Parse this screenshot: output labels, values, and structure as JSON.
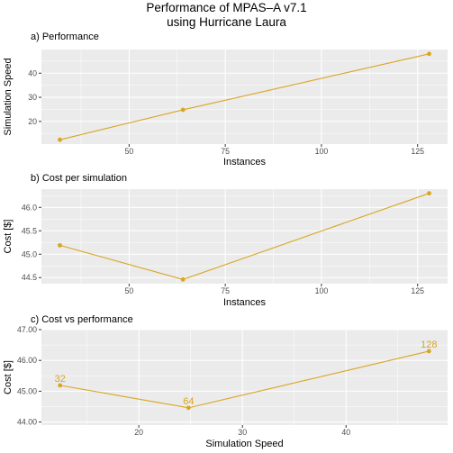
{
  "figure": {
    "title_line1": "Performance of MPAS–A v7.1",
    "title_line2": "using Hurricane Laura"
  },
  "colors": {
    "panel_bg": "#EBEBEB",
    "grid": "#FFFFFF",
    "series": "#DAA520"
  },
  "chart_data": [
    {
      "type": "line",
      "subtitle": "a) Performance",
      "xlabel": "Instances",
      "ylabel": "Simulation Speed",
      "x": [
        32,
        64,
        128
      ],
      "y": [
        12.4,
        24.8,
        48.0
      ],
      "xlim": [
        27.2,
        132.8
      ],
      "ylim": [
        10.6,
        49.8
      ],
      "xticks": [
        50,
        75,
        100,
        125
      ],
      "xtick_labels": [
        "50",
        "75",
        "100",
        "125"
      ],
      "yticks": [
        20,
        30,
        40
      ],
      "ytick_labels": [
        "20",
        "30",
        "40"
      ],
      "grid": true
    },
    {
      "type": "line",
      "subtitle": "b) Cost per simulation",
      "xlabel": "Instances",
      "ylabel": "Cost [$]",
      "x": [
        32,
        64,
        128
      ],
      "y": [
        45.19,
        44.46,
        46.3
      ],
      "xlim": [
        27.2,
        132.8
      ],
      "ylim": [
        44.37,
        46.39
      ],
      "xticks": [
        50,
        75,
        100,
        125
      ],
      "xtick_labels": [
        "50",
        "75",
        "100",
        "125"
      ],
      "yticks": [
        44.5,
        45.0,
        45.5,
        46.0
      ],
      "ytick_labels": [
        "44.5",
        "45.0",
        "45.5",
        "46.0"
      ],
      "grid": true
    },
    {
      "type": "line",
      "subtitle": "c) Cost vs performance",
      "xlabel": "Simulation Speed",
      "ylabel": "Cost [$]",
      "x": [
        12.4,
        24.8,
        48.0
      ],
      "y": [
        45.19,
        44.46,
        46.3
      ],
      "point_labels": [
        "32",
        "64",
        "128"
      ],
      "xlim": [
        10.6,
        49.8
      ],
      "ylim": [
        43.9,
        47.0
      ],
      "xticks": [
        20,
        30,
        40
      ],
      "xtick_labels": [
        "20",
        "30",
        "40"
      ],
      "yticks": [
        44.0,
        45.0,
        46.0,
        47.0
      ],
      "ytick_labels": [
        "44.00",
        "45.00",
        "46.00",
        "47.00"
      ],
      "grid": true
    }
  ]
}
